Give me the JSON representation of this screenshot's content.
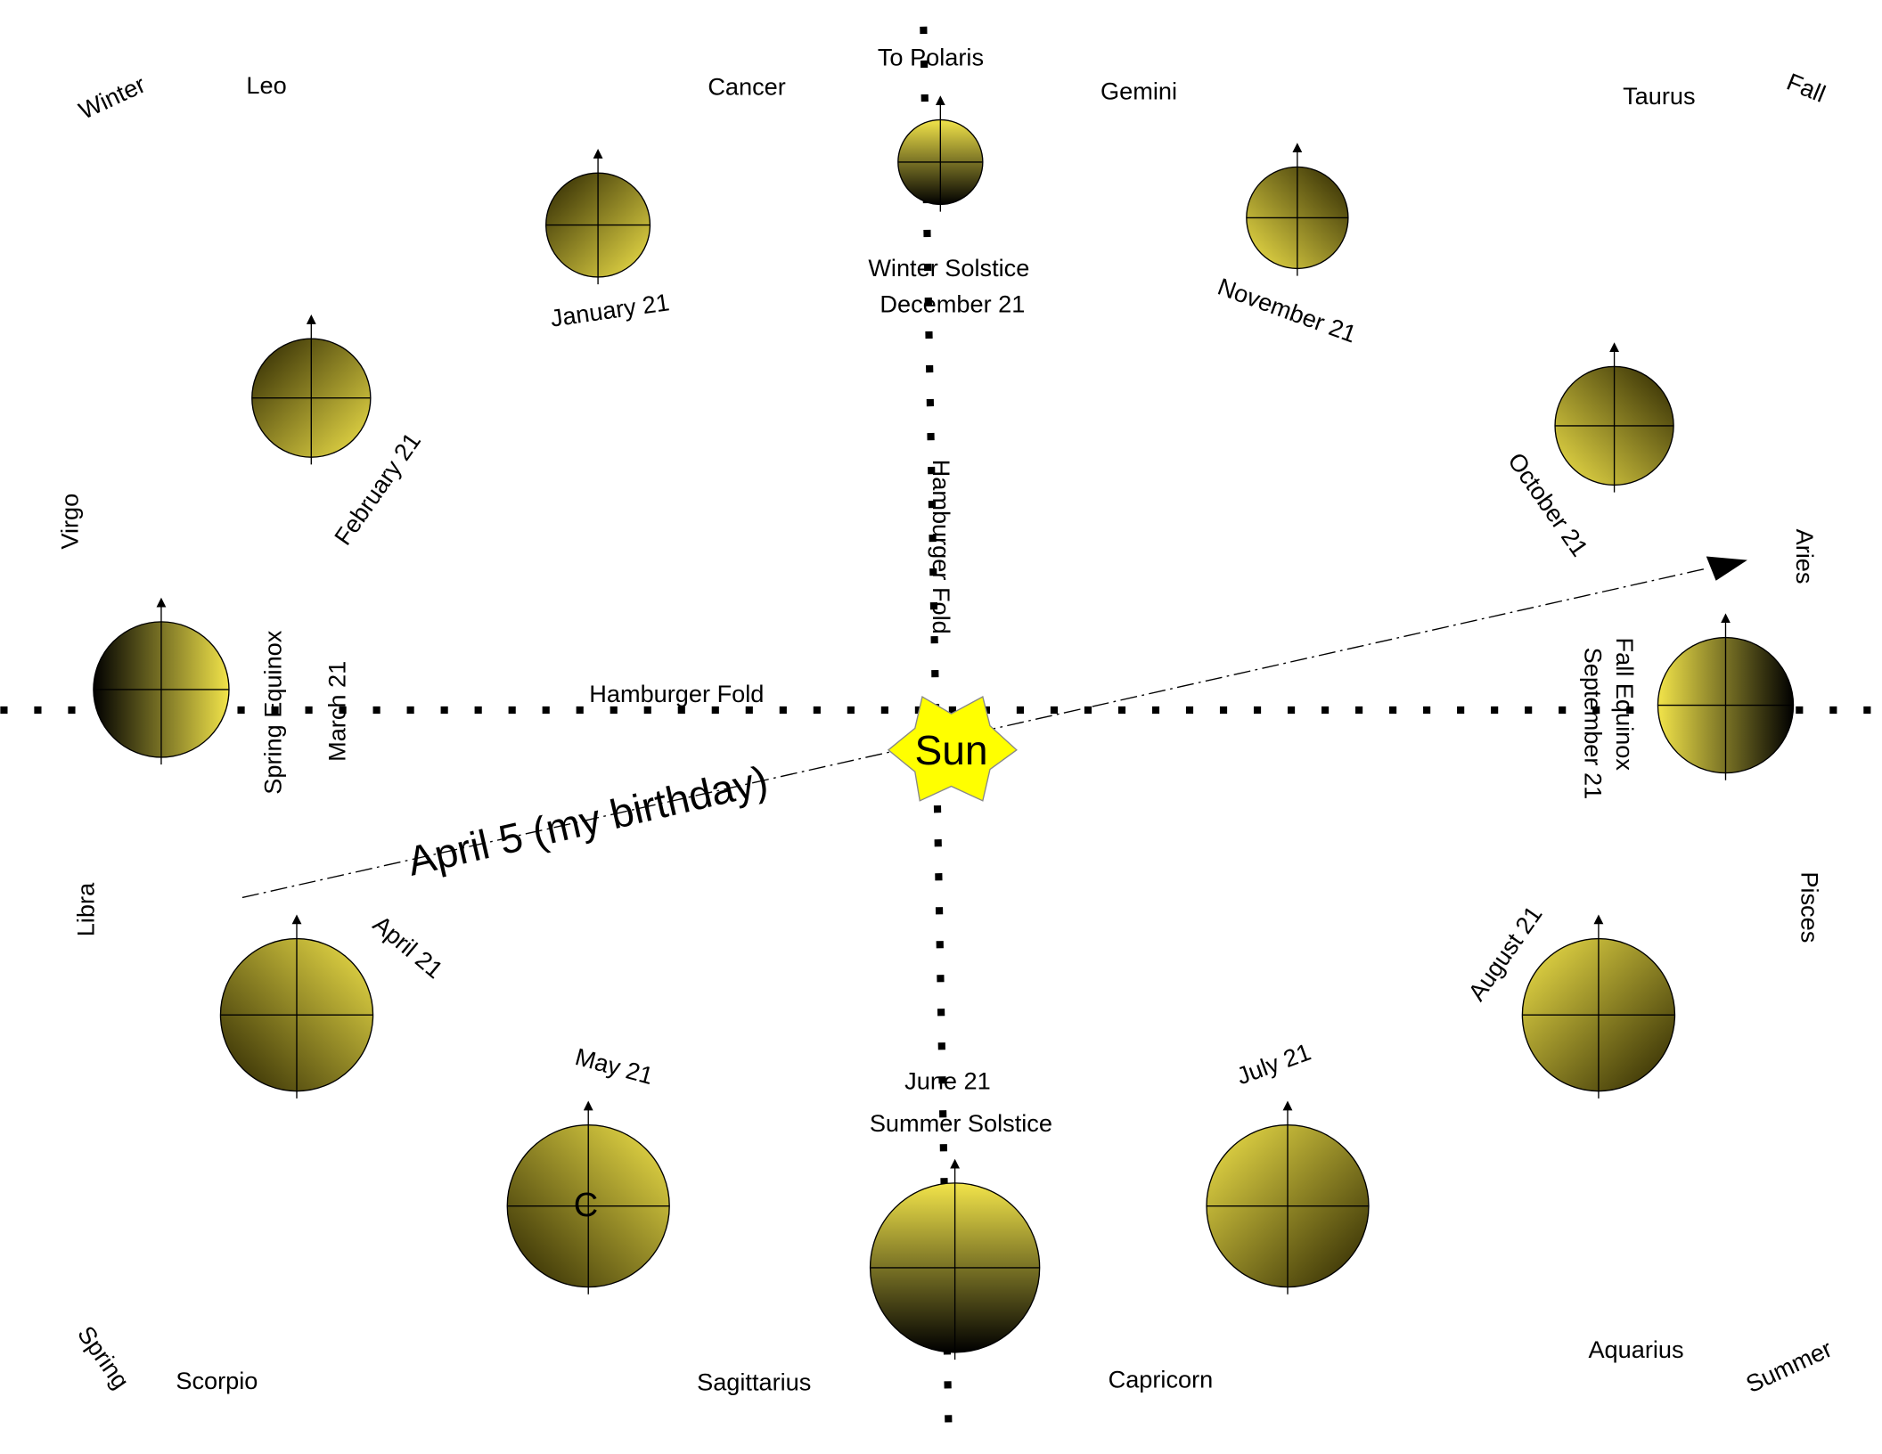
{
  "top_label": "To Polaris",
  "seasons": {
    "winter": "Winter",
    "fall": "Fall",
    "spring": "Spring",
    "summer": "Summer"
  },
  "zodiac": {
    "leo": "Leo",
    "cancer": "Cancer",
    "gemini": "Gemini",
    "taurus": "Taurus",
    "virgo": "Virgo",
    "aries": "Aries",
    "libra": "Libra",
    "pisces": "Pisces",
    "scorpio": "Scorpio",
    "sagittarius": "Sagittarius",
    "capricorn": "Capricorn",
    "aquarius": "Aquarius"
  },
  "dates": {
    "jan": "January  21",
    "dec": "December 21",
    "nov": "November 21",
    "feb": "February 21",
    "oct": "October 21",
    "mar": "March 21",
    "sep": "September 21",
    "apr": "April 21",
    "aug": "August 21",
    "may": "May 21",
    "jun": "June 21",
    "jul": "July 21"
  },
  "events": {
    "winter_solstice": "Winter Solstice",
    "spring_equinox": "Spring Equinox",
    "fall_equinox": "Fall Equinox",
    "summer_solstice": "Summer Solstice"
  },
  "folds": {
    "vertical": "Hamburger Fold",
    "horizontal": "Hamburger Fold"
  },
  "sun": "Sun",
  "birthday": "April 5 (my birthday)",
  "planet_mark": "C"
}
